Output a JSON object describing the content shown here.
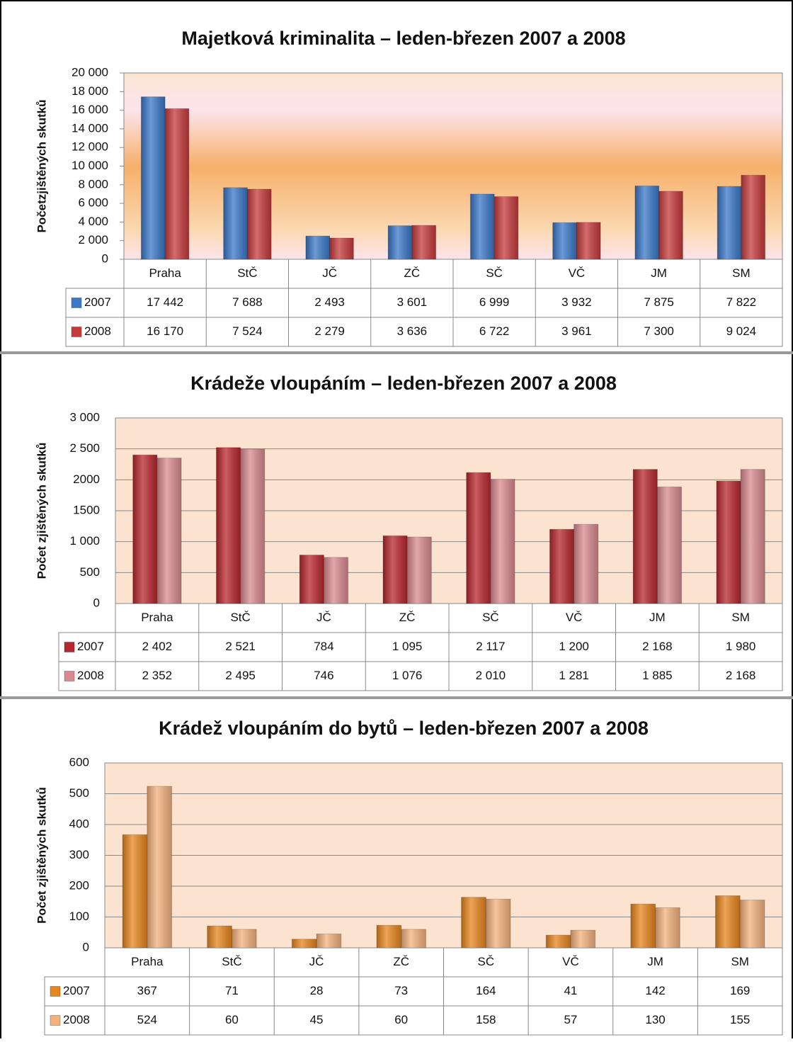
{
  "chart_data": [
    {
      "type": "bar",
      "title": "Majetková kriminalita – leden-březen 2007 a 2008",
      "y_label": "Početzjištěných skutků",
      "categories": [
        "Praha",
        "StČ",
        "JČ",
        "ZČ",
        "SČ",
        "VČ",
        "JM",
        "SM"
      ],
      "series": [
        {
          "name": "2007",
          "color": "#3a78c8",
          "values": [
            17442,
            7688,
            2493,
            3601,
            6999,
            3932,
            7875,
            7822
          ],
          "value_labels": [
            "17 442",
            "7 688",
            "2 493",
            "3 601",
            "6 999",
            "3 932",
            "7 875",
            "7 822"
          ]
        },
        {
          "name": "2008",
          "color": "#c63a3c",
          "values": [
            16170,
            7524,
            2279,
            3636,
            6722,
            3961,
            7300,
            9024
          ],
          "value_labels": [
            "16 170",
            "7 524",
            "2 279",
            "3 636",
            "6 722",
            "3 961",
            "7 300",
            "9 024"
          ]
        }
      ],
      "ylim": [
        0,
        20000
      ],
      "yticks": [
        0,
        {
          "value": 2000,
          "label": "2 000"
        },
        {
          "value": 4000,
          "label": "4 000"
        },
        {
          "value": 6000,
          "label": "6 000"
        },
        {
          "value": 8000,
          "label": "8 000"
        },
        {
          "value": 10000,
          "label": "10 000"
        },
        {
          "value": 12000,
          "label": "12 000"
        },
        {
          "value": 14000,
          "label": "14 000"
        },
        {
          "value": 16000,
          "label": "16 000"
        },
        {
          "value": 18000,
          "label": "18 000"
        },
        {
          "value": 20000,
          "label": "20 000"
        }
      ],
      "grid": false
    },
    {
      "type": "bar",
      "title": "Krádeže vloupáním – leden-březen 2007 a 2008",
      "y_label": "Počet zjištěných skutků",
      "categories": [
        "Praha",
        "StČ",
        "JČ",
        "ZČ",
        "SČ",
        "VČ",
        "JM",
        "SM"
      ],
      "series": [
        {
          "name": "2007",
          "color": "#b8272e",
          "values": [
            2402,
            2521,
            784,
            1095,
            2117,
            1200,
            2168,
            1980
          ],
          "value_labels": [
            "2 402",
            "2 521",
            "784",
            "1 095",
            "2 117",
            "1 200",
            "2 168",
            "1 980"
          ]
        },
        {
          "name": "2008",
          "color": "#d98a90",
          "values": [
            2352,
            2495,
            746,
            1076,
            2010,
            1281,
            1885,
            2168
          ],
          "value_labels": [
            "2 352",
            "2 495",
            "746",
            "1 076",
            "2 010",
            "1 281",
            "1 885",
            "2 168"
          ]
        }
      ],
      "ylim": [
        0,
        3000
      ],
      "yticks": [
        0,
        500,
        {
          "value": 1000,
          "label": "1 000"
        },
        {
          "value": 1500,
          "label": "1500"
        },
        {
          "value": 2000,
          "label": "2000"
        },
        {
          "value": 2500,
          "label": "2 500"
        },
        {
          "value": 3000,
          "label": "3 000"
        }
      ],
      "grid": true
    },
    {
      "type": "bar",
      "title": "Krádež vloupáním do bytů – leden-březen 2007 a 2008",
      "y_label": "Počet zjištěných skutků",
      "categories": [
        "Praha",
        "StČ",
        "JČ",
        "ZČ",
        "SČ",
        "VČ",
        "JM",
        "SM"
      ],
      "series": [
        {
          "name": "2007",
          "color": "#e8861e",
          "values": [
            367,
            71,
            28,
            73,
            164,
            41,
            142,
            169
          ]
        },
        {
          "name": "2008",
          "color": "#f4b27e",
          "values": [
            524,
            60,
            45,
            60,
            158,
            57,
            130,
            155
          ]
        }
      ],
      "ylim": [
        0,
        600
      ],
      "yticks": [
        0,
        100,
        200,
        300,
        400,
        500,
        600
      ],
      "grid": true
    }
  ]
}
